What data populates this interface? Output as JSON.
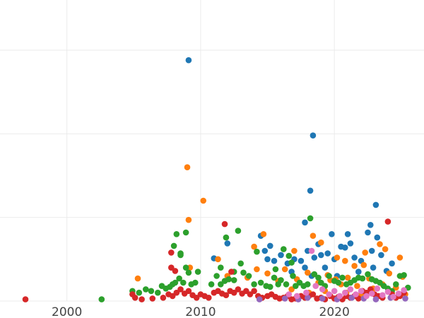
{
  "chart_data": {
    "type": "scatter",
    "title": "",
    "xlabel": "",
    "ylabel": "",
    "xlim": [
      1995,
      2026.7
    ],
    "ylim": [
      0,
      360
    ],
    "x_ticks": [
      2000,
      2010,
      2020
    ],
    "y_grid": [
      0,
      100,
      200,
      300
    ],
    "grid": true,
    "legend": "none",
    "series": [
      {
        "color": "#1f77b4",
        "points": [
          [
            2009.1,
            288
          ],
          [
            2018.4,
            198
          ],
          [
            2018.2,
            132
          ],
          [
            2023.1,
            115
          ],
          [
            2017.8,
            94
          ],
          [
            2022.7,
            91
          ],
          [
            2019.8,
            80
          ],
          [
            2021.0,
            80
          ],
          [
            2022.5,
            82
          ],
          [
            2023.2,
            76
          ],
          [
            2014.5,
            78
          ],
          [
            2015.2,
            66
          ],
          [
            2018.8,
            68
          ],
          [
            2020.5,
            65
          ],
          [
            2021.2,
            69
          ],
          [
            2022.8,
            60
          ],
          [
            2023.5,
            55
          ],
          [
            2024.3,
            45
          ],
          [
            2012.0,
            69
          ],
          [
            2011.0,
            51
          ],
          [
            2014.8,
            60
          ],
          [
            2015.0,
            50
          ],
          [
            2015.5,
            48
          ],
          [
            2016.0,
            55
          ],
          [
            2016.5,
            45
          ],
          [
            2017.0,
            50
          ],
          [
            2017.5,
            48
          ],
          [
            2018.0,
            60
          ],
          [
            2018.5,
            52
          ],
          [
            2019.0,
            55
          ],
          [
            2019.5,
            57
          ],
          [
            2020.0,
            50
          ],
          [
            2020.8,
            64
          ],
          [
            2021.5,
            52
          ],
          [
            2022.0,
            48
          ],
          [
            2022.9,
            40
          ],
          [
            2018.3,
            30
          ],
          [
            2019.3,
            40
          ],
          [
            2020.2,
            30
          ],
          [
            2021.8,
            35
          ],
          [
            2016.8,
            35
          ],
          [
            2017.8,
            40
          ],
          [
            2023.9,
            36
          ]
        ]
      },
      {
        "color": "#ff7f0e",
        "points": [
          [
            2009.0,
            160
          ],
          [
            2010.2,
            120
          ],
          [
            2009.1,
            97
          ],
          [
            2014.7,
            80
          ],
          [
            2014.0,
            65
          ],
          [
            2018.4,
            78
          ],
          [
            2023.4,
            68
          ],
          [
            2023.8,
            62
          ],
          [
            2022.3,
            58
          ],
          [
            2017.0,
            60
          ],
          [
            2019.0,
            70
          ],
          [
            2020.2,
            52
          ],
          [
            2020.8,
            48
          ],
          [
            2021.5,
            42
          ],
          [
            2022.2,
            43
          ],
          [
            2024.9,
            52
          ],
          [
            2011.3,
            50
          ],
          [
            2005.3,
            27
          ],
          [
            2009.2,
            40
          ],
          [
            2014.2,
            38
          ],
          [
            2016.3,
            38
          ],
          [
            2018.0,
            34
          ],
          [
            2019.5,
            31
          ],
          [
            2020.1,
            26
          ],
          [
            2021.0,
            28
          ],
          [
            2022.6,
            27
          ],
          [
            2024.1,
            33
          ],
          [
            2025.1,
            29
          ],
          [
            2012.0,
            30
          ],
          [
            2013.5,
            28
          ],
          [
            2015.0,
            33
          ],
          [
            2015.8,
            24
          ],
          [
            2017.2,
            26
          ],
          [
            2018.8,
            22
          ],
          [
            2019.7,
            25
          ],
          [
            2020.5,
            20
          ],
          [
            2021.7,
            18
          ],
          [
            2022.9,
            15
          ],
          [
            2023.6,
            20
          ],
          [
            2024.6,
            16
          ],
          [
            2016.8,
            14
          ],
          [
            2018.1,
            10
          ],
          [
            2019.3,
            12
          ],
          [
            2020.9,
            10
          ],
          [
            2022.0,
            8
          ],
          [
            2024.3,
            10
          ],
          [
            2025.3,
            8
          ]
        ]
      },
      {
        "color": "#2ca02c",
        "points": [
          [
            2002.6,
            2
          ],
          [
            2004.9,
            12
          ],
          [
            2005.4,
            10
          ],
          [
            2005.9,
            14
          ],
          [
            2006.3,
            12
          ],
          [
            2006.8,
            10
          ],
          [
            2007.1,
            18
          ],
          [
            2007.4,
            15
          ],
          [
            2007.7,
            17
          ],
          [
            2007.9,
            20
          ],
          [
            2008.1,
            22
          ],
          [
            2008.4,
            27
          ],
          [
            2008.7,
            22
          ],
          [
            2008.0,
            66
          ],
          [
            2008.5,
            55
          ],
          [
            2008.5,
            57
          ],
          [
            2008.2,
            80
          ],
          [
            2008.9,
            82
          ],
          [
            2008.9,
            40
          ],
          [
            2009.3,
            20
          ],
          [
            2009.6,
            22
          ],
          [
            2009.1,
            34
          ],
          [
            2009.8,
            35
          ],
          [
            2010.8,
            20
          ],
          [
            2011.2,
            30
          ],
          [
            2011.5,
            20
          ],
          [
            2011.8,
            24
          ],
          [
            2011.9,
            76
          ],
          [
            2012.1,
            26
          ],
          [
            2012.5,
            25
          ],
          [
            2012.8,
            84
          ],
          [
            2013.0,
            45
          ],
          [
            2013.2,
            34
          ],
          [
            2013.6,
            30
          ],
          [
            2014.0,
            20
          ],
          [
            2014.2,
            59
          ],
          [
            2014.5,
            22
          ],
          [
            2014.9,
            18
          ],
          [
            2015.2,
            17
          ],
          [
            2015.5,
            28
          ],
          [
            2015.8,
            20
          ],
          [
            2016.0,
            25
          ],
          [
            2016.2,
            62
          ],
          [
            2016.4,
            20
          ],
          [
            2016.6,
            54
          ],
          [
            2016.9,
            30
          ],
          [
            2017.1,
            18
          ],
          [
            2017.4,
            22
          ],
          [
            2017.7,
            18
          ],
          [
            2018.0,
            20
          ],
          [
            2018.2,
            99
          ],
          [
            2018.5,
            32
          ],
          [
            2018.8,
            28
          ],
          [
            2019.0,
            22
          ],
          [
            2019.3,
            18
          ],
          [
            2019.6,
            30
          ],
          [
            2020.0,
            24
          ],
          [
            2020.3,
            22
          ],
          [
            2020.6,
            28
          ],
          [
            2020.9,
            20
          ],
          [
            2021.2,
            22
          ],
          [
            2021.5,
            25
          ],
          [
            2021.8,
            28
          ],
          [
            2022.1,
            27
          ],
          [
            2022.5,
            32
          ],
          [
            2022.8,
            26
          ],
          [
            2023.1,
            24
          ],
          [
            2023.4,
            22
          ],
          [
            2023.7,
            18
          ],
          [
            2024.0,
            15
          ],
          [
            2024.3,
            12
          ],
          [
            2024.6,
            20
          ],
          [
            2024.9,
            30
          ],
          [
            2025.2,
            31
          ],
          [
            2025.5,
            16
          ],
          [
            2015.6,
            38
          ],
          [
            2016.8,
            46
          ],
          [
            2011.5,
            40
          ],
          [
            2012.5,
            35
          ]
        ]
      },
      {
        "color": "#d62728",
        "points": [
          [
            1996.9,
            2
          ],
          [
            2004.9,
            8
          ],
          [
            2005.1,
            4
          ],
          [
            2005.6,
            2
          ],
          [
            2006.4,
            3
          ],
          [
            2007.2,
            4
          ],
          [
            2007.6,
            8
          ],
          [
            2007.9,
            6
          ],
          [
            2008.2,
            10
          ],
          [
            2008.5,
            14
          ],
          [
            2008.8,
            9
          ],
          [
            2009.1,
            12
          ],
          [
            2009.4,
            7
          ],
          [
            2009.7,
            4
          ],
          [
            2010.0,
            8
          ],
          [
            2010.3,
            6
          ],
          [
            2010.6,
            4
          ],
          [
            2011.0,
            10
          ],
          [
            2011.3,
            12
          ],
          [
            2011.6,
            9
          ],
          [
            2011.9,
            7
          ],
          [
            2012.2,
            12
          ],
          [
            2012.5,
            10
          ],
          [
            2012.8,
            14
          ],
          [
            2013.1,
            9
          ],
          [
            2013.4,
            12
          ],
          [
            2013.7,
            8
          ],
          [
            2014.0,
            12
          ],
          [
            2014.3,
            6
          ],
          [
            2014.6,
            4
          ],
          [
            2015.0,
            6
          ],
          [
            2015.3,
            8
          ],
          [
            2015.6,
            5
          ],
          [
            2015.9,
            3
          ],
          [
            2016.2,
            4
          ],
          [
            2016.5,
            6
          ],
          [
            2016.8,
            2
          ],
          [
            2017.1,
            3
          ],
          [
            2017.5,
            6
          ],
          [
            2017.8,
            4
          ],
          [
            2018.1,
            6
          ],
          [
            2018.4,
            8
          ],
          [
            2018.7,
            3
          ],
          [
            2019.0,
            4
          ],
          [
            2019.3,
            2
          ],
          [
            2019.7,
            6
          ],
          [
            2020.0,
            3
          ],
          [
            2020.3,
            5
          ],
          [
            2020.6,
            2
          ],
          [
            2020.9,
            6
          ],
          [
            2021.2,
            4
          ],
          [
            2021.5,
            6
          ],
          [
            2021.8,
            3
          ],
          [
            2022.1,
            12
          ],
          [
            2022.4,
            10
          ],
          [
            2022.7,
            14
          ],
          [
            2023.0,
            8
          ],
          [
            2023.3,
            6
          ],
          [
            2023.6,
            4
          ],
          [
            2024.0,
            95
          ],
          [
            2024.3,
            8
          ],
          [
            2024.6,
            4
          ],
          [
            2024.9,
            6
          ],
          [
            2025.2,
            10
          ],
          [
            2011.8,
            92
          ],
          [
            2007.8,
            58
          ],
          [
            2007.8,
            40
          ],
          [
            2012.3,
            35
          ],
          [
            2008.1,
            36
          ]
        ]
      },
      {
        "color": "#9467bd",
        "points": [
          [
            2014.4,
            2
          ],
          [
            2016.3,
            3
          ],
          [
            2017.3,
            2
          ],
          [
            2018.0,
            4
          ],
          [
            2019.1,
            3
          ],
          [
            2020.2,
            2
          ],
          [
            2021.3,
            4
          ],
          [
            2022.2,
            3
          ],
          [
            2023.1,
            2
          ],
          [
            2024.2,
            4
          ],
          [
            2025.3,
            3
          ]
        ]
      },
      {
        "color": "#e377c2",
        "points": [
          [
            2018.3,
            60
          ],
          [
            2017.9,
            10
          ],
          [
            2018.6,
            18
          ],
          [
            2019.1,
            14
          ],
          [
            2019.6,
            8
          ],
          [
            2020.0,
            12
          ],
          [
            2020.4,
            6
          ],
          [
            2020.8,
            10
          ],
          [
            2021.2,
            14
          ],
          [
            2021.6,
            8
          ],
          [
            2022.0,
            12
          ],
          [
            2022.4,
            6
          ],
          [
            2022.8,
            9
          ],
          [
            2023.2,
            15
          ],
          [
            2023.6,
            7
          ],
          [
            2024.0,
            11
          ],
          [
            2024.4,
            5
          ],
          [
            2024.8,
            9
          ],
          [
            2025.2,
            13
          ],
          [
            2017.2,
            6
          ],
          [
            2016.6,
            8
          ]
        ]
      }
    ]
  }
}
